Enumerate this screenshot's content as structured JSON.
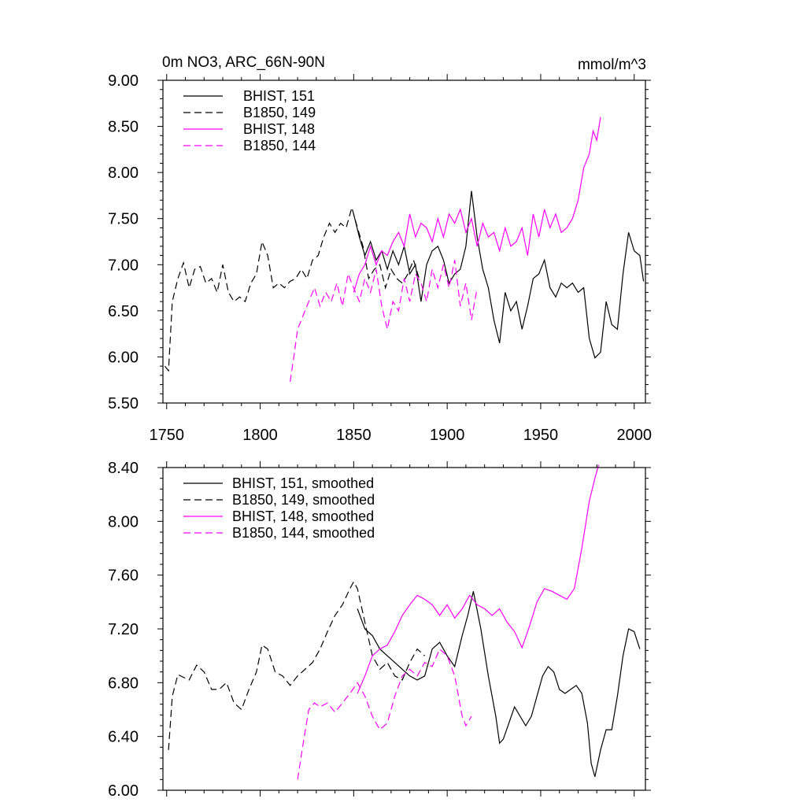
{
  "chart_data": [
    {
      "type": "line",
      "title": "0m NO3, ARC_66N-90N",
      "units": "mmol/m^3",
      "xlim": [
        1748,
        2006
      ],
      "ylim": [
        5.5,
        9.0
      ],
      "x_ticks": [
        1750,
        1800,
        1850,
        1900,
        1950,
        2000
      ],
      "y_ticks": [
        5.5,
        6.0,
        6.5,
        7.0,
        7.5,
        8.0,
        8.5,
        9.0
      ],
      "x_tick_labels": [
        "1750",
        "1800",
        "1850",
        "1900",
        "1950",
        "2000"
      ],
      "y_tick_labels": [
        "5.50",
        "6.00",
        "6.50",
        "7.00",
        "7.50",
        "8.00",
        "8.50",
        "9.00"
      ],
      "series": [
        {
          "name": "BHIST, 151",
          "color": "#000000",
          "dash": "solid",
          "x": [
            1850,
            1853,
            1856,
            1859,
            1862,
            1865,
            1868,
            1871,
            1874,
            1877,
            1880,
            1883,
            1886,
            1889,
            1892,
            1895,
            1898,
            1901,
            1904,
            1907,
            1910,
            1913,
            1916,
            1919,
            1922,
            1925,
            1928,
            1931,
            1934,
            1937,
            1940,
            1943,
            1946,
            1949,
            1952,
            1955,
            1958,
            1961,
            1964,
            1967,
            1970,
            1973,
            1976,
            1979,
            1982,
            1985,
            1988,
            1991,
            1994,
            1997,
            2000,
            2003,
            2005
          ],
          "values": [
            7.55,
            7.3,
            7.1,
            7.25,
            7.05,
            7.15,
            6.95,
            7.15,
            7.0,
            7.2,
            6.9,
            7.0,
            6.6,
            7.0,
            7.15,
            7.2,
            7.05,
            6.8,
            6.9,
            6.95,
            7.2,
            7.8,
            7.3,
            6.95,
            6.75,
            6.4,
            6.15,
            6.7,
            6.5,
            6.6,
            6.3,
            6.55,
            6.85,
            6.9,
            7.05,
            6.75,
            6.65,
            6.8,
            6.75,
            6.8,
            6.7,
            6.75,
            6.2,
            5.99,
            6.05,
            6.6,
            6.35,
            6.3,
            6.9,
            7.35,
            7.15,
            7.1,
            6.82
          ]
        },
        {
          "name": "B1850, 149",
          "color": "#000000",
          "dash": "dashed",
          "x": [
            1749,
            1751,
            1753,
            1756,
            1759,
            1762,
            1765,
            1768,
            1771,
            1774,
            1777,
            1780,
            1783,
            1786,
            1789,
            1792,
            1795,
            1798,
            1801,
            1804,
            1807,
            1810,
            1813,
            1816,
            1819,
            1822,
            1825,
            1828,
            1831,
            1834,
            1837,
            1840,
            1843,
            1846,
            1849,
            1852,
            1855,
            1858,
            1861,
            1864,
            1867,
            1870,
            1873,
            1876,
            1879,
            1882,
            1885
          ],
          "values": [
            5.9,
            5.85,
            6.6,
            6.85,
            7.02,
            6.75,
            6.95,
            6.98,
            6.8,
            6.85,
            6.7,
            7.0,
            6.7,
            6.6,
            6.65,
            6.6,
            6.8,
            6.9,
            7.25,
            7.1,
            6.75,
            6.8,
            6.75,
            6.82,
            6.85,
            6.95,
            6.85,
            7.05,
            7.1,
            7.3,
            7.45,
            7.35,
            7.45,
            7.4,
            7.62,
            7.4,
            7.2,
            6.85,
            6.95,
            7.0,
            6.75,
            6.95,
            6.85,
            6.8,
            6.9,
            7.05,
            6.85
          ]
        },
        {
          "name": "BHIST, 148",
          "color": "#ff00ff",
          "dash": "solid",
          "x": [
            1850,
            1853,
            1856,
            1859,
            1862,
            1865,
            1868,
            1871,
            1874,
            1877,
            1880,
            1883,
            1886,
            1889,
            1892,
            1895,
            1898,
            1901,
            1904,
            1907,
            1910,
            1913,
            1916,
            1919,
            1922,
            1925,
            1928,
            1931,
            1934,
            1937,
            1940,
            1943,
            1946,
            1949,
            1952,
            1955,
            1958,
            1961,
            1964,
            1967,
            1970,
            1973,
            1976,
            1978,
            1980,
            1982
          ],
          "values": [
            6.7,
            6.9,
            7.0,
            7.2,
            7.0,
            7.15,
            7.1,
            7.25,
            7.35,
            7.2,
            7.55,
            7.3,
            7.45,
            7.4,
            7.25,
            7.5,
            7.3,
            7.55,
            7.45,
            7.6,
            7.35,
            7.5,
            7.2,
            7.45,
            7.3,
            7.35,
            7.15,
            7.4,
            7.2,
            7.25,
            7.4,
            7.1,
            7.55,
            7.3,
            7.6,
            7.4,
            7.55,
            7.35,
            7.4,
            7.5,
            7.7,
            8.05,
            8.2,
            8.45,
            8.35,
            8.6
          ]
        },
        {
          "name": "B1850, 144",
          "color": "#ff00ff",
          "dash": "dashed",
          "x": [
            1816,
            1818,
            1820,
            1823,
            1826,
            1829,
            1832,
            1835,
            1838,
            1841,
            1844,
            1847,
            1850,
            1853,
            1856,
            1859,
            1862,
            1865,
            1868,
            1871,
            1874,
            1877,
            1880,
            1883,
            1886,
            1889,
            1892,
            1895,
            1898,
            1901,
            1904,
            1907,
            1910,
            1913,
            1916
          ],
          "values": [
            5.73,
            6.0,
            6.3,
            6.45,
            6.6,
            6.75,
            6.55,
            6.7,
            6.6,
            6.8,
            6.55,
            6.9,
            6.75,
            6.6,
            6.85,
            6.7,
            6.95,
            6.55,
            6.3,
            6.6,
            6.5,
            6.85,
            6.6,
            6.9,
            6.8,
            6.6,
            6.95,
            6.75,
            7.0,
            6.75,
            7.05,
            6.55,
            6.8,
            6.4,
            6.75
          ]
        }
      ]
    },
    {
      "type": "line",
      "xlim": [
        1748,
        2006
      ],
      "ylim": [
        6.0,
        8.4
      ],
      "x_ticks": [
        1750,
        1800,
        1850,
        1900,
        1950,
        2000
      ],
      "y_ticks": [
        6.0,
        6.4,
        6.8,
        7.2,
        7.6,
        8.0,
        8.4
      ],
      "y_tick_labels": [
        "6.00",
        "6.40",
        "6.80",
        "7.20",
        "7.60",
        "8.00",
        "8.40"
      ],
      "series": [
        {
          "name": "BHIST, 151, smoothed",
          "color": "#000000",
          "dash": "solid",
          "x": [
            1852,
            1856,
            1860,
            1864,
            1868,
            1872,
            1876,
            1880,
            1884,
            1888,
            1892,
            1896,
            1900,
            1904,
            1908,
            1911,
            1914,
            1918,
            1922,
            1926,
            1928,
            1930,
            1933,
            1936,
            1939,
            1942,
            1945,
            1948,
            1951,
            1954,
            1957,
            1960,
            1963,
            1966,
            1969,
            1972,
            1975,
            1977,
            1979,
            1982,
            1985,
            1988,
            1991,
            1994,
            1997,
            2000,
            2003
          ],
          "values": [
            7.35,
            7.2,
            7.15,
            7.05,
            7.0,
            6.95,
            6.9,
            6.85,
            6.82,
            6.85,
            7.05,
            7.1,
            7.0,
            6.92,
            7.15,
            7.3,
            7.48,
            7.2,
            6.85,
            6.55,
            6.35,
            6.38,
            6.5,
            6.62,
            6.55,
            6.48,
            6.55,
            6.7,
            6.85,
            6.92,
            6.88,
            6.75,
            6.72,
            6.75,
            6.78,
            6.72,
            6.5,
            6.2,
            6.1,
            6.3,
            6.45,
            6.45,
            6.7,
            7.0,
            7.2,
            7.18,
            7.05
          ]
        },
        {
          "name": "B1850, 149, smoothed",
          "color": "#000000",
          "dash": "dashed",
          "x": [
            1751,
            1753,
            1756,
            1759,
            1762,
            1766,
            1770,
            1774,
            1778,
            1782,
            1786,
            1790,
            1794,
            1798,
            1801,
            1804,
            1808,
            1812,
            1816,
            1820,
            1824,
            1828,
            1832,
            1836,
            1840,
            1844,
            1848,
            1850,
            1852,
            1856,
            1860,
            1864,
            1868,
            1872,
            1876,
            1880,
            1884,
            1888
          ],
          "values": [
            6.3,
            6.7,
            6.86,
            6.84,
            6.82,
            6.93,
            6.88,
            6.75,
            6.75,
            6.8,
            6.65,
            6.6,
            6.75,
            6.88,
            7.08,
            7.05,
            6.88,
            6.85,
            6.78,
            6.85,
            6.9,
            6.95,
            7.05,
            7.18,
            7.3,
            7.38,
            7.5,
            7.55,
            7.5,
            7.25,
            7.0,
            6.9,
            6.95,
            6.85,
            6.82,
            6.95,
            7.05,
            7.0
          ]
        },
        {
          "name": "BHIST, 148, smoothed",
          "color": "#ff00ff",
          "dash": "solid",
          "x": [
            1852,
            1856,
            1860,
            1864,
            1868,
            1872,
            1876,
            1880,
            1884,
            1888,
            1892,
            1896,
            1900,
            1904,
            1908,
            1912,
            1916,
            1920,
            1924,
            1928,
            1932,
            1936,
            1940,
            1944,
            1948,
            1952,
            1956,
            1960,
            1964,
            1968,
            1972,
            1976,
            1979,
            1981
          ],
          "values": [
            6.72,
            6.85,
            7.0,
            7.05,
            7.08,
            7.18,
            7.3,
            7.38,
            7.45,
            7.42,
            7.38,
            7.3,
            7.38,
            7.28,
            7.35,
            7.45,
            7.38,
            7.35,
            7.3,
            7.35,
            7.25,
            7.18,
            7.06,
            7.22,
            7.4,
            7.5,
            7.48,
            7.45,
            7.42,
            7.5,
            7.8,
            8.15,
            8.32,
            8.42
          ]
        },
        {
          "name": "B1850, 144, smoothed",
          "color": "#ff00ff",
          "dash": "dashed",
          "x": [
            1820,
            1823,
            1826,
            1829,
            1832,
            1836,
            1840,
            1844,
            1848,
            1852,
            1856,
            1860,
            1864,
            1868,
            1872,
            1876,
            1880,
            1884,
            1888,
            1892,
            1896,
            1900,
            1904,
            1908,
            1910,
            1913
          ],
          "values": [
            6.08,
            6.35,
            6.6,
            6.65,
            6.62,
            6.65,
            6.58,
            6.65,
            6.72,
            6.8,
            6.7,
            6.55,
            6.45,
            6.5,
            6.7,
            6.85,
            6.9,
            6.85,
            6.95,
            6.92,
            7.05,
            7.0,
            6.85,
            6.55,
            6.48,
            6.55
          ]
        }
      ]
    }
  ]
}
